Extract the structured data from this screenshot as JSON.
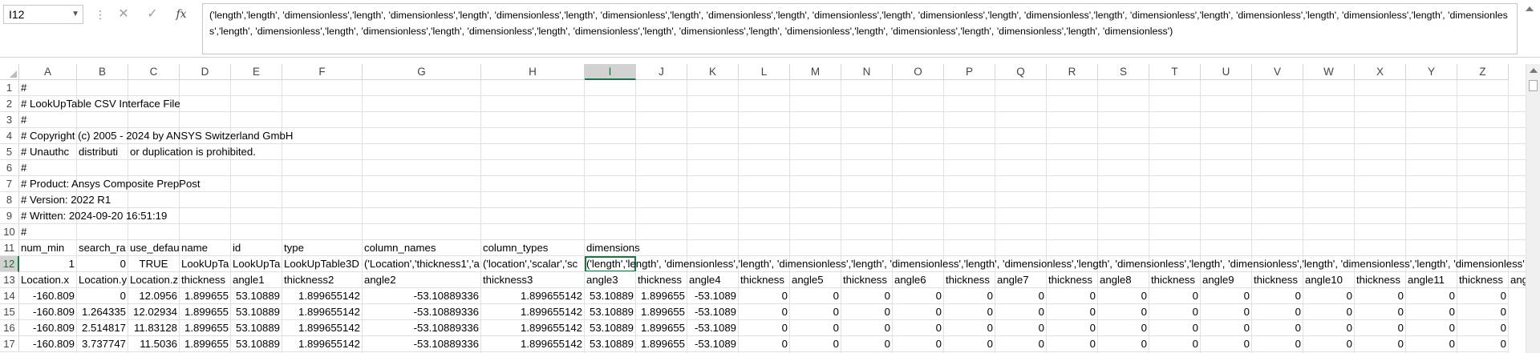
{
  "formula_bar": {
    "name_box": "I12",
    "name_box_arrow": "▼",
    "more_icon": "⋮",
    "cancel_icon": "✕",
    "enter_icon": "✓",
    "fx_label": "fx",
    "content": "('length','length', 'dimensionless','length', 'dimensionless','length', 'dimensionless','length', 'dimensionless','length', 'dimensionless','length', 'dimensionless','length', 'dimensionless','length', 'dimensionless','length', 'dimensionless','length', 'dimensionless','length', 'dimensionless','length', 'dimensionless','length', 'dimensionless','length', 'dimensionless','length', 'dimensionless','length', 'dimensionless','length', 'dimensionless','length', 'dimensionless','length', 'dimensionless','length', 'dimensionless','length', 'dimensionless')"
  },
  "columns": [
    "A",
    "B",
    "C",
    "D",
    "E",
    "F",
    "G",
    "H",
    "I",
    "J",
    "K",
    "L",
    "M",
    "N",
    "O",
    "P",
    "Q",
    "R",
    "S",
    "T",
    "U",
    "V",
    "W",
    "X",
    "Y",
    "Z"
  ],
  "selected_column": "I",
  "selected_row": "12",
  "rows": [
    {
      "n": "1",
      "cells": [
        {
          "c": "A",
          "v": "#",
          "spill": true
        }
      ]
    },
    {
      "n": "2",
      "cells": [
        {
          "c": "A",
          "v": "# LookUpTable CSV Interface File",
          "spill": true
        }
      ]
    },
    {
      "n": "3",
      "cells": [
        {
          "c": "A",
          "v": "#",
          "spill": true
        }
      ]
    },
    {
      "n": "4",
      "cells": [
        {
          "c": "A",
          "v": "# Copyright (c) 2005 - 2024 by ANSYS Switzerland GmbH",
          "spill": true
        }
      ]
    },
    {
      "n": "5",
      "cells": [
        {
          "c": "A",
          "v": "# Unauthc"
        },
        {
          "c": "B",
          "v": "distributi"
        },
        {
          "c": "C",
          "v": "or duplication is prohibited.",
          "spill": true
        }
      ]
    },
    {
      "n": "6",
      "cells": [
        {
          "c": "A",
          "v": "#",
          "spill": true
        }
      ]
    },
    {
      "n": "7",
      "cells": [
        {
          "c": "A",
          "v": "# Product: Ansys Composite PrepPost",
          "spill": true
        }
      ]
    },
    {
      "n": "8",
      "cells": [
        {
          "c": "A",
          "v": "# Version: 2022 R1",
          "spill": true
        }
      ]
    },
    {
      "n": "9",
      "cells": [
        {
          "c": "A",
          "v": "# Written: 2024-09-20 16:51:19",
          "spill": true
        }
      ]
    },
    {
      "n": "10",
      "cells": [
        {
          "c": "A",
          "v": "#",
          "spill": true
        }
      ]
    },
    {
      "n": "11",
      "cells": [
        {
          "c": "A",
          "v": "num_min"
        },
        {
          "c": "B",
          "v": "search_ra"
        },
        {
          "c": "C",
          "v": "use_defau"
        },
        {
          "c": "D",
          "v": "name"
        },
        {
          "c": "E",
          "v": "id"
        },
        {
          "c": "F",
          "v": "type"
        },
        {
          "c": "G",
          "v": "column_names"
        },
        {
          "c": "H",
          "v": "column_types"
        },
        {
          "c": "I",
          "v": "dimensions",
          "spill": true
        }
      ]
    },
    {
      "n": "12",
      "cells": [
        {
          "c": "A",
          "v": "1",
          "num": true
        },
        {
          "c": "B",
          "v": "0",
          "num": true
        },
        {
          "c": "C",
          "v": "TRUE",
          "ctr": true
        },
        {
          "c": "D",
          "v": "LookUpTa"
        },
        {
          "c": "E",
          "v": "LookUpTa"
        },
        {
          "c": "F",
          "v": "LookUpTable3D"
        },
        {
          "c": "G",
          "v": "('Location','thickness1','a"
        },
        {
          "c": "H",
          "v": "('location','scalar','sc"
        },
        {
          "c": "I",
          "v": "('length','length', 'dimensionless','length', 'dimensionless','length', 'dimensionless','length', 'dimensionless','length', 'dimensionless','length', 'dimensionless','length', 'dimensionless','length', 'dimensionless','length', 'dimensionless','length'",
          "spill": true,
          "active": true
        }
      ]
    },
    {
      "n": "13",
      "cells": [
        {
          "c": "A",
          "v": "Location.x"
        },
        {
          "c": "B",
          "v": "Location.y"
        },
        {
          "c": "C",
          "v": "Location.z"
        },
        {
          "c": "D",
          "v": "thickness"
        },
        {
          "c": "E",
          "v": "angle1"
        },
        {
          "c": "F",
          "v": "thickness2"
        },
        {
          "c": "G",
          "v": "angle2"
        },
        {
          "c": "H",
          "v": "thickness3"
        },
        {
          "c": "I",
          "v": "angle3"
        },
        {
          "c": "J",
          "v": "thickness"
        },
        {
          "c": "K",
          "v": "angle4"
        },
        {
          "c": "L",
          "v": "thickness"
        },
        {
          "c": "M",
          "v": "angle5"
        },
        {
          "c": "N",
          "v": "thickness"
        },
        {
          "c": "O",
          "v": "angle6"
        },
        {
          "c": "P",
          "v": "thickness"
        },
        {
          "c": "Q",
          "v": "angle7"
        },
        {
          "c": "R",
          "v": "thickness"
        },
        {
          "c": "S",
          "v": "angle8"
        },
        {
          "c": "T",
          "v": "thickness"
        },
        {
          "c": "U",
          "v": "angle9"
        },
        {
          "c": "V",
          "v": "thickness"
        },
        {
          "c": "W",
          "v": "angle10"
        },
        {
          "c": "X",
          "v": "thickness"
        },
        {
          "c": "Y",
          "v": "angle11"
        },
        {
          "c": "Z",
          "v": "thickness"
        },
        {
          "c": "AA",
          "v": "ang",
          "spill": true
        }
      ]
    },
    {
      "n": "14",
      "cells": [
        {
          "c": "A",
          "v": "-160.809",
          "num": true
        },
        {
          "c": "B",
          "v": "0",
          "num": true
        },
        {
          "c": "C",
          "v": "12.0956",
          "num": true
        },
        {
          "c": "D",
          "v": "1.899655",
          "num": true
        },
        {
          "c": "E",
          "v": "53.10889",
          "num": true
        },
        {
          "c": "F",
          "v": "1.899655142",
          "num": true
        },
        {
          "c": "G",
          "v": "-53.10889336",
          "num": true
        },
        {
          "c": "H",
          "v": "1.899655142",
          "num": true
        },
        {
          "c": "I",
          "v": "53.10889",
          "num": true
        },
        {
          "c": "J",
          "v": "1.899655",
          "num": true
        },
        {
          "c": "K",
          "v": "-53.1089",
          "num": true
        },
        {
          "c": "L",
          "v": "0",
          "num": true
        },
        {
          "c": "M",
          "v": "0",
          "num": true
        },
        {
          "c": "N",
          "v": "0",
          "num": true
        },
        {
          "c": "O",
          "v": "0",
          "num": true
        },
        {
          "c": "P",
          "v": "0",
          "num": true
        },
        {
          "c": "Q",
          "v": "0",
          "num": true
        },
        {
          "c": "R",
          "v": "0",
          "num": true
        },
        {
          "c": "S",
          "v": "0",
          "num": true
        },
        {
          "c": "T",
          "v": "0",
          "num": true
        },
        {
          "c": "U",
          "v": "0",
          "num": true
        },
        {
          "c": "V",
          "v": "0",
          "num": true
        },
        {
          "c": "W",
          "v": "0",
          "num": true
        },
        {
          "c": "X",
          "v": "0",
          "num": true
        },
        {
          "c": "Y",
          "v": "0",
          "num": true
        },
        {
          "c": "Z",
          "v": "0",
          "num": true
        }
      ]
    },
    {
      "n": "15",
      "cells": [
        {
          "c": "A",
          "v": "-160.809",
          "num": true
        },
        {
          "c": "B",
          "v": "1.264335",
          "num": true
        },
        {
          "c": "C",
          "v": "12.02934",
          "num": true
        },
        {
          "c": "D",
          "v": "1.899655",
          "num": true
        },
        {
          "c": "E",
          "v": "53.10889",
          "num": true
        },
        {
          "c": "F",
          "v": "1.899655142",
          "num": true
        },
        {
          "c": "G",
          "v": "-53.10889336",
          "num": true
        },
        {
          "c": "H",
          "v": "1.899655142",
          "num": true
        },
        {
          "c": "I",
          "v": "53.10889",
          "num": true
        },
        {
          "c": "J",
          "v": "1.899655",
          "num": true
        },
        {
          "c": "K",
          "v": "-53.1089",
          "num": true
        },
        {
          "c": "L",
          "v": "0",
          "num": true
        },
        {
          "c": "M",
          "v": "0",
          "num": true
        },
        {
          "c": "N",
          "v": "0",
          "num": true
        },
        {
          "c": "O",
          "v": "0",
          "num": true
        },
        {
          "c": "P",
          "v": "0",
          "num": true
        },
        {
          "c": "Q",
          "v": "0",
          "num": true
        },
        {
          "c": "R",
          "v": "0",
          "num": true
        },
        {
          "c": "S",
          "v": "0",
          "num": true
        },
        {
          "c": "T",
          "v": "0",
          "num": true
        },
        {
          "c": "U",
          "v": "0",
          "num": true
        },
        {
          "c": "V",
          "v": "0",
          "num": true
        },
        {
          "c": "W",
          "v": "0",
          "num": true
        },
        {
          "c": "X",
          "v": "0",
          "num": true
        },
        {
          "c": "Y",
          "v": "0",
          "num": true
        },
        {
          "c": "Z",
          "v": "0",
          "num": true
        }
      ]
    },
    {
      "n": "16",
      "cells": [
        {
          "c": "A",
          "v": "-160.809",
          "num": true
        },
        {
          "c": "B",
          "v": "2.514817",
          "num": true
        },
        {
          "c": "C",
          "v": "11.83128",
          "num": true
        },
        {
          "c": "D",
          "v": "1.899655",
          "num": true
        },
        {
          "c": "E",
          "v": "53.10889",
          "num": true
        },
        {
          "c": "F",
          "v": "1.899655142",
          "num": true
        },
        {
          "c": "G",
          "v": "-53.10889336",
          "num": true
        },
        {
          "c": "H",
          "v": "1.899655142",
          "num": true
        },
        {
          "c": "I",
          "v": "53.10889",
          "num": true
        },
        {
          "c": "J",
          "v": "1.899655",
          "num": true
        },
        {
          "c": "K",
          "v": "-53.1089",
          "num": true
        },
        {
          "c": "L",
          "v": "0",
          "num": true
        },
        {
          "c": "M",
          "v": "0",
          "num": true
        },
        {
          "c": "N",
          "v": "0",
          "num": true
        },
        {
          "c": "O",
          "v": "0",
          "num": true
        },
        {
          "c": "P",
          "v": "0",
          "num": true
        },
        {
          "c": "Q",
          "v": "0",
          "num": true
        },
        {
          "c": "R",
          "v": "0",
          "num": true
        },
        {
          "c": "S",
          "v": "0",
          "num": true
        },
        {
          "c": "T",
          "v": "0",
          "num": true
        },
        {
          "c": "U",
          "v": "0",
          "num": true
        },
        {
          "c": "V",
          "v": "0",
          "num": true
        },
        {
          "c": "W",
          "v": "0",
          "num": true
        },
        {
          "c": "X",
          "v": "0",
          "num": true
        },
        {
          "c": "Y",
          "v": "0",
          "num": true
        },
        {
          "c": "Z",
          "v": "0",
          "num": true
        }
      ]
    },
    {
      "n": "17",
      "cells": [
        {
          "c": "A",
          "v": "-160.809",
          "num": true
        },
        {
          "c": "B",
          "v": "3.737747",
          "num": true
        },
        {
          "c": "C",
          "v": "11.5036",
          "num": true
        },
        {
          "c": "D",
          "v": "1.899655",
          "num": true
        },
        {
          "c": "E",
          "v": "53.10889",
          "num": true
        },
        {
          "c": "F",
          "v": "1.899655142",
          "num": true
        },
        {
          "c": "G",
          "v": "-53.10889336",
          "num": true
        },
        {
          "c": "H",
          "v": "1.899655142",
          "num": true
        },
        {
          "c": "I",
          "v": "53.10889",
          "num": true
        },
        {
          "c": "J",
          "v": "1.899655",
          "num": true
        },
        {
          "c": "K",
          "v": "-53.1089",
          "num": true
        },
        {
          "c": "L",
          "v": "0",
          "num": true
        },
        {
          "c": "M",
          "v": "0",
          "num": true
        },
        {
          "c": "N",
          "v": "0",
          "num": true
        },
        {
          "c": "O",
          "v": "0",
          "num": true
        },
        {
          "c": "P",
          "v": "0",
          "num": true
        },
        {
          "c": "Q",
          "v": "0",
          "num": true
        },
        {
          "c": "R",
          "v": "0",
          "num": true
        },
        {
          "c": "S",
          "v": "0",
          "num": true
        },
        {
          "c": "T",
          "v": "0",
          "num": true
        },
        {
          "c": "U",
          "v": "0",
          "num": true
        },
        {
          "c": "V",
          "v": "0",
          "num": true
        },
        {
          "c": "W",
          "v": "0",
          "num": true
        },
        {
          "c": "X",
          "v": "0",
          "num": true
        },
        {
          "c": "Y",
          "v": "0",
          "num": true
        },
        {
          "c": "Z",
          "v": "0",
          "num": true
        }
      ]
    }
  ],
  "colors": {
    "accent": "#217346",
    "header_selected": "#d2d2d2",
    "gridline": "#e1e1e1"
  }
}
